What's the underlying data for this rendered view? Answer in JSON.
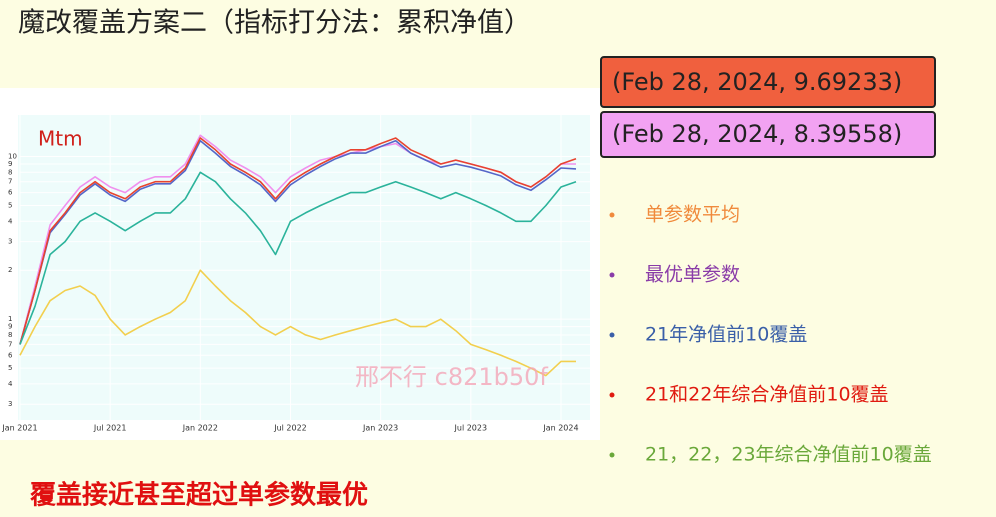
{
  "slide_title": "魔改覆盖方案二（指标打分法：累积净值）",
  "hover_labels": [
    "(Feb 28, 2024, 9.69233)",
    "(Feb 28, 2024, 8.39558)"
  ],
  "conclusion": "覆盖接近甚至超过单参数最优",
  "watermark": "邢不行 c821b50f",
  "chart_data": {
    "type": "line",
    "title": "Mtm",
    "log_y": true,
    "legend": "right",
    "x": [
      "2021-01",
      "2021-02",
      "2021-03",
      "2021-04",
      "2021-05",
      "2021-06",
      "2021-07",
      "2021-08",
      "2021-09",
      "2021-10",
      "2021-11",
      "2021-12",
      "2022-01",
      "2022-02",
      "2022-03",
      "2022-04",
      "2022-05",
      "2022-06",
      "2022-07",
      "2022-08",
      "2022-09",
      "2022-10",
      "2022-11",
      "2022-12",
      "2023-01",
      "2023-02",
      "2023-03",
      "2023-04",
      "2023-05",
      "2023-06",
      "2023-07",
      "2023-08",
      "2023-09",
      "2023-10",
      "2023-11",
      "2023-12",
      "2024-01",
      "2024-02"
    ],
    "xlim": [
      "2021-01",
      "2024-02"
    ],
    "xticks": [
      {
        "value": "2021-01",
        "label": "Jan 2021"
      },
      {
        "value": "2021-07",
        "label": "Jul 2021"
      },
      {
        "value": "2022-01",
        "label": "Jan 2022"
      },
      {
        "value": "2022-07",
        "label": "Jul 2022"
      },
      {
        "value": "2023-01",
        "label": "Jan 2023"
      },
      {
        "value": "2023-07",
        "label": "Jul 2023"
      },
      {
        "value": "2024-01",
        "label": "Jan 2024"
      }
    ],
    "ylim": [
      0.24,
      18
    ],
    "yticks": [
      10,
      9,
      8,
      7,
      6,
      5,
      4,
      3,
      2,
      1,
      {
        "value": 0.9,
        "label": "9"
      },
      {
        "value": 0.8,
        "label": "8"
      },
      {
        "value": 0.7,
        "label": "7"
      },
      {
        "value": 0.6,
        "label": "6"
      },
      {
        "value": 0.5,
        "label": "5"
      },
      {
        "value": 0.4,
        "label": "4"
      },
      {
        "value": 0.3,
        "label": "3"
      }
    ],
    "series": [
      {
        "name": "单参数平均",
        "color": "#f2cf4e",
        "values": [
          0.6,
          0.9,
          1.3,
          1.5,
          1.6,
          1.4,
          1.0,
          0.8,
          0.9,
          1.0,
          1.1,
          1.3,
          2.0,
          1.6,
          1.3,
          1.1,
          0.9,
          0.8,
          0.9,
          0.8,
          0.75,
          0.8,
          0.85,
          0.9,
          0.95,
          1.0,
          0.9,
          0.9,
          1.0,
          0.85,
          0.7,
          0.65,
          0.6,
          0.55,
          0.5,
          0.45,
          0.55,
          0.55
        ]
      },
      {
        "name": "最优单参数",
        "color": "#f090ee",
        "values": [
          0.7,
          1.6,
          3.8,
          5,
          6.5,
          7.5,
          6.5,
          6,
          7,
          7.5,
          7.5,
          9,
          13.5,
          11.5,
          9.5,
          8.5,
          7.5,
          6,
          7.5,
          8.5,
          9.5,
          10,
          10.5,
          11,
          11.5,
          12,
          10.5,
          9.5,
          9,
          9.5,
          9,
          8.5,
          8,
          7,
          6.5,
          7.5,
          9,
          9
        ]
      },
      {
        "name": "21年净值前10覆盖",
        "color": "#5566c8",
        "values": [
          0.7,
          1.5,
          3.4,
          4.4,
          5.8,
          6.8,
          5.8,
          5.3,
          6.3,
          6.8,
          6.8,
          8.2,
          12.5,
          10.5,
          8.7,
          7.7,
          6.7,
          5.3,
          6.7,
          7.7,
          8.7,
          9.7,
          10.5,
          10.5,
          11.5,
          12.5,
          10.5,
          9.5,
          8.6,
          9,
          8.6,
          8.1,
          7.6,
          6.7,
          6.2,
          7.2,
          8.5,
          8.39558
        ]
      },
      {
        "name": "21和22年综合净值前10覆盖",
        "color": "#e8432e",
        "values": [
          0.7,
          1.5,
          3.5,
          4.5,
          6,
          7,
          6,
          5.5,
          6.5,
          7,
          7,
          8.5,
          13,
          11,
          9,
          8,
          7,
          5.5,
          7,
          8,
          9,
          10,
          11,
          11,
          12,
          13,
          11,
          10,
          9,
          9.5,
          9,
          8.5,
          8,
          7,
          6.5,
          7.5,
          9,
          9.69233
        ]
      },
      {
        "name": "21，22，23年综合净值前10覆盖",
        "color": "#2bb39b",
        "values": [
          0.7,
          1.2,
          2.5,
          3,
          4,
          4.5,
          4,
          3.5,
          4,
          4.5,
          4.5,
          5.5,
          8,
          7,
          5.5,
          4.5,
          3.5,
          2.5,
          4,
          4.5,
          5,
          5.5,
          6,
          6,
          6.5,
          7,
          6.5,
          6,
          5.5,
          6,
          5.5,
          5,
          4.5,
          4,
          4,
          5,
          6.5,
          7
        ]
      }
    ]
  }
}
